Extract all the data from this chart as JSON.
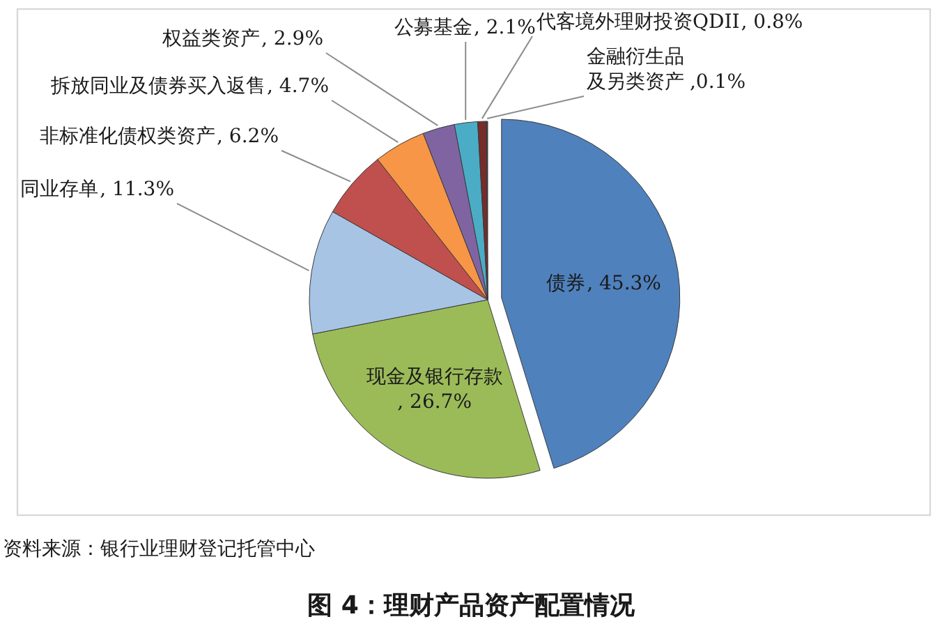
{
  "chart_data": {
    "type": "pie",
    "title": "图 4：理财产品资产配置情况",
    "categories": [
      "债券",
      "现金及银行存款",
      "同业存单",
      "非标准化债权类资产",
      "拆放同业及债券买入返售",
      "权益类资产",
      "公募基金",
      "代客境外理财投资QDII",
      "金融衍生品及另类资产"
    ],
    "values": [
      45.3,
      26.7,
      11.3,
      6.2,
      4.7,
      2.9,
      2.1,
      0.8,
      0.1
    ],
    "colors": [
      "#4f81bd",
      "#9bbb59",
      "#a7c4e5",
      "#c0504d",
      "#f79646",
      "#8064a2",
      "#4bacc6",
      "#772c2a",
      "#2c4d75"
    ],
    "value_labels": [
      ", 45.3%",
      ", 26.7%",
      ", 11.3%",
      ", 6.2%",
      ", 4.7%",
      ", 2.9%",
      ", 2.1%",
      ", 0.8%",
      ",0.1%"
    ],
    "annotations": [
      "资料来源：银行业理财登记托管中心"
    ]
  }
}
